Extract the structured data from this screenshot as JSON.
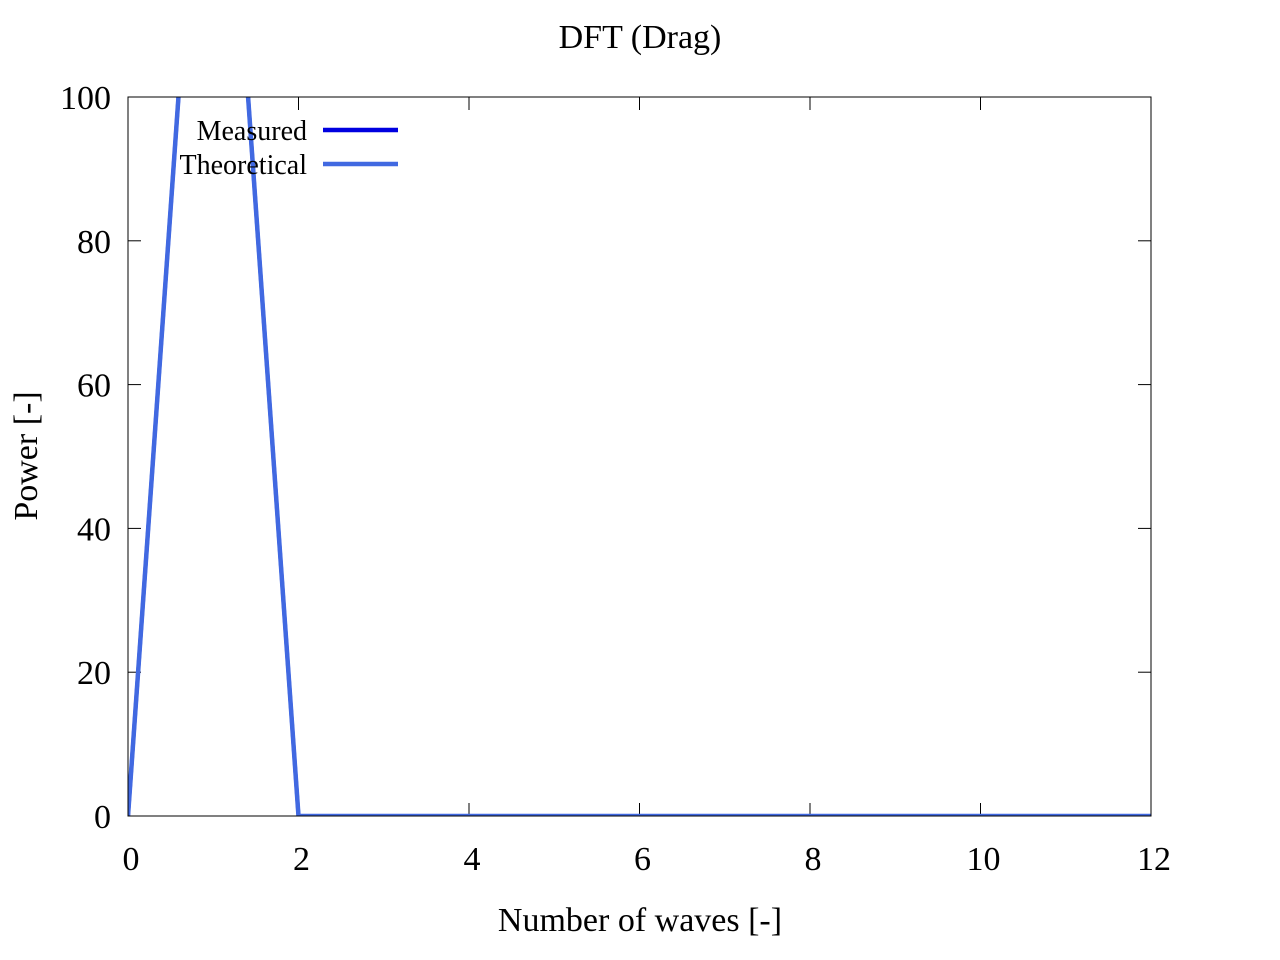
{
  "chart_data": {
    "type": "line",
    "title": "DFT (Drag)",
    "xlabel": "Number of waves [-]",
    "ylabel": "Power [-]",
    "xlim": [
      0,
      12
    ],
    "ylim": [
      0,
      100
    ],
    "xticks": [
      0,
      2,
      4,
      6,
      8,
      10,
      12
    ],
    "yticks": [
      0,
      20,
      40,
      60,
      80,
      100
    ],
    "xtick_labels": [
      "0",
      "2",
      "4",
      "6",
      "8",
      "10",
      "12"
    ],
    "ytick_labels": [
      "0",
      "20",
      "40",
      "60",
      "80",
      "100"
    ],
    "grid": false,
    "legend_position": "top-left",
    "series": [
      {
        "name": "Measured",
        "color": "#0000e0",
        "x": [
          0,
          1,
          2,
          3,
          4,
          5,
          6,
          7,
          8,
          9,
          10,
          11,
          12
        ],
        "y": [
          0,
          169,
          0,
          0,
          0,
          0,
          0,
          0,
          0,
          0,
          0,
          0,
          0
        ]
      },
      {
        "name": "Theoretical",
        "color": "#4169e1",
        "x": [
          0,
          1,
          2,
          3,
          4,
          5,
          6,
          7,
          8,
          9,
          10,
          11,
          12
        ],
        "y": [
          0,
          169,
          0,
          0,
          0,
          0,
          0,
          0,
          0,
          0,
          0,
          0,
          0
        ]
      }
    ]
  }
}
